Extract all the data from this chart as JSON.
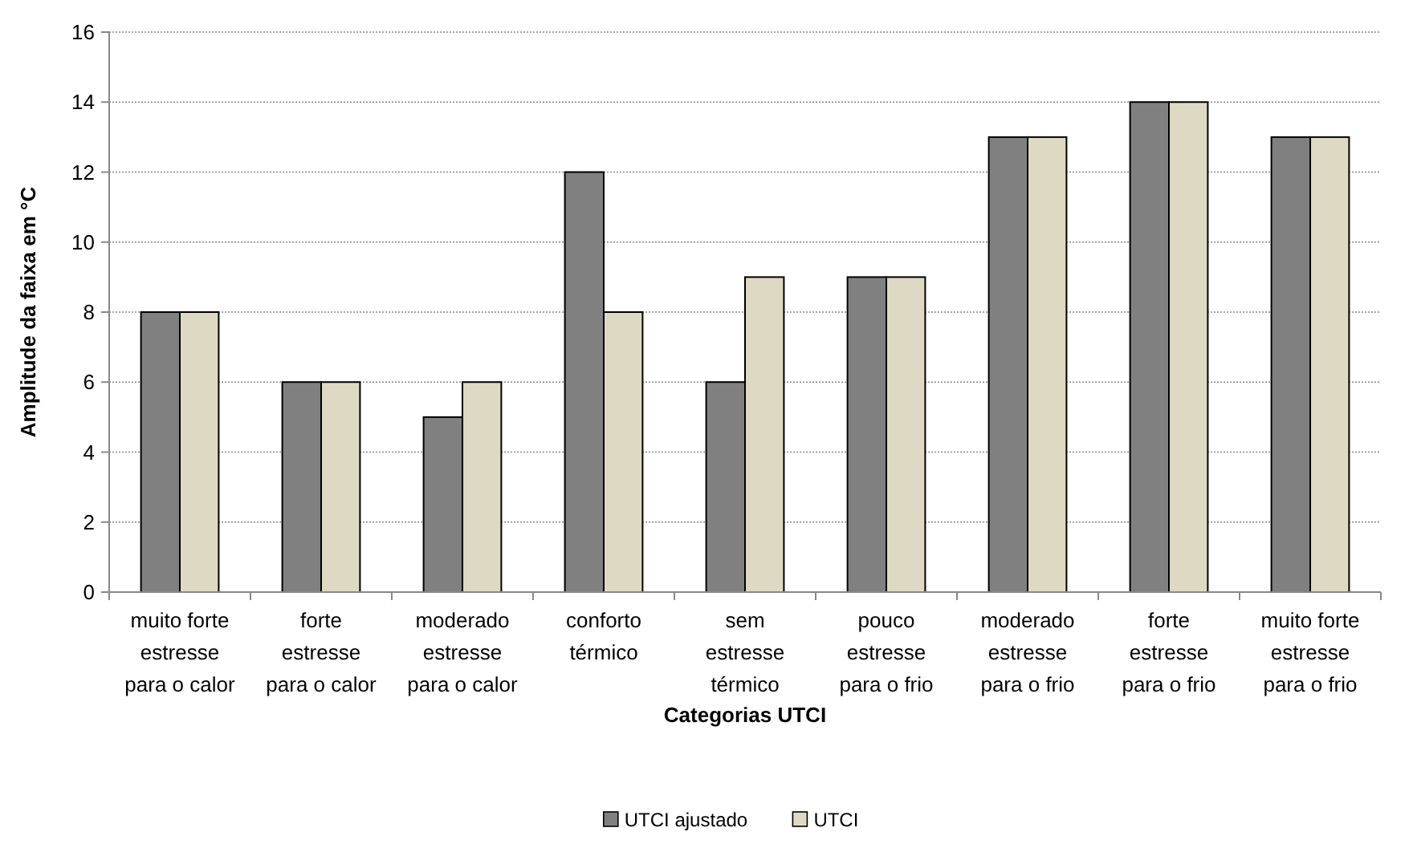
{
  "chart_data": {
    "type": "bar",
    "xlabel": "Categorias UTCI",
    "ylabel": "Amplitude da faixa em °C",
    "categories": [
      "muito forte\nestresse\npara o calor",
      "forte\nestresse\npara o calor",
      "moderado\nestresse\npara o calor",
      "conforto\ntérmico",
      "sem\nestresse\ntérmico",
      "pouco\nestresse\npara o frio",
      "moderado\nestresse\npara o frio",
      "forte\nestresse\npara o frio",
      "muito forte\nestresse\npara o frio"
    ],
    "series": [
      {
        "name": "UTCI ajustado",
        "color": "#808080",
        "values": [
          8,
          6,
          5,
          12,
          6,
          9,
          13,
          14,
          13
        ]
      },
      {
        "name": "UTCI",
        "color": "#ddd9c3",
        "values": [
          8,
          6,
          6,
          8,
          9,
          9,
          13,
          14,
          13
        ]
      }
    ],
    "ylim": [
      0,
      16
    ],
    "yticks": [
      0,
      2,
      4,
      6,
      8,
      10,
      12,
      14,
      16
    ],
    "grid": "y",
    "legend": "bottom"
  }
}
